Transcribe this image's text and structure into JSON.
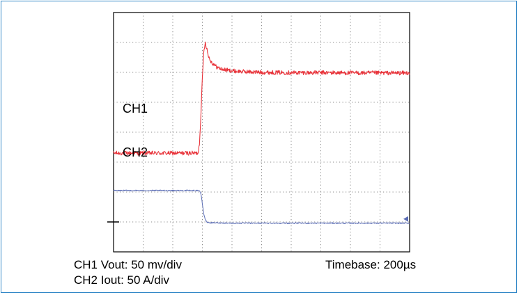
{
  "chart_data": {
    "type": "line",
    "title": "",
    "xlabel": "",
    "ylabel": "",
    "grid": true,
    "divisions": {
      "x": 10,
      "y": 8
    },
    "xlim": [
      0,
      10
    ],
    "ylim": [
      0,
      8
    ],
    "series": [
      {
        "name": "CH1",
        "color": "#e8333a",
        "noise_divs": 0.07,
        "x": [
          0,
          2.85,
          2.9,
          2.95,
          3.0,
          3.05,
          3.1,
          3.15,
          3.2,
          3.3,
          3.45,
          3.6,
          3.8,
          4.1,
          4.5,
          5.0,
          6.0,
          7.0,
          8.5,
          10
        ],
        "y": [
          3.3,
          3.3,
          3.6,
          4.6,
          5.8,
          6.75,
          7.0,
          6.8,
          6.55,
          6.35,
          6.2,
          6.12,
          6.08,
          6.04,
          6.02,
          6.0,
          5.99,
          5.99,
          5.98,
          5.98
        ]
      },
      {
        "name": "CH2",
        "color": "#5b6db5",
        "noise_divs": 0.018,
        "x": [
          0,
          2.9,
          2.95,
          3.0,
          3.05,
          3.1,
          3.15,
          3.2,
          3.3,
          3.5,
          4.0,
          10
        ],
        "y": [
          2.05,
          2.05,
          1.95,
          1.6,
          1.25,
          1.08,
          1.0,
          0.98,
          0.97,
          0.97,
          0.96,
          0.96
        ]
      }
    ]
  },
  "labels": {
    "ch1": "CH1",
    "ch2": "CH2",
    "ch1_scale": "CH1 Vout: 50 mv/div",
    "ch2_scale": "CH2 Iout: 50 A/div",
    "timebase": "Timebase: 200µs"
  }
}
